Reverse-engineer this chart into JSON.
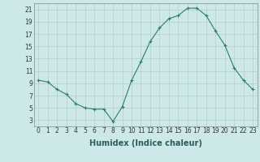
{
  "x": [
    0,
    1,
    2,
    3,
    4,
    5,
    6,
    7,
    8,
    9,
    10,
    11,
    12,
    13,
    14,
    15,
    16,
    17,
    18,
    19,
    20,
    21,
    22,
    23
  ],
  "y": [
    9.5,
    9.2,
    8.0,
    7.2,
    5.7,
    5.0,
    4.8,
    4.8,
    2.8,
    5.2,
    9.5,
    12.5,
    15.8,
    18.0,
    19.5,
    20.0,
    21.2,
    21.2,
    20.0,
    17.5,
    15.2,
    11.5,
    9.5,
    8.0
  ],
  "line_color": "#2d7d6e",
  "marker": "+",
  "marker_size": 3,
  "xlabel": "Humidex (Indice chaleur)",
  "bg_color": "#cde8e8",
  "grid_color": "#b8cccc",
  "ylim": [
    2,
    22
  ],
  "xlim": [
    -0.5,
    23.5
  ],
  "yticks": [
    3,
    5,
    7,
    9,
    11,
    13,
    15,
    17,
    19,
    21
  ],
  "xticks": [
    0,
    1,
    2,
    3,
    4,
    5,
    6,
    7,
    8,
    9,
    10,
    11,
    12,
    13,
    14,
    15,
    16,
    17,
    18,
    19,
    20,
    21,
    22,
    23
  ],
  "tick_fontsize": 5.5,
  "xlabel_fontsize": 7,
  "xlabel_color": "#2d5a5a"
}
